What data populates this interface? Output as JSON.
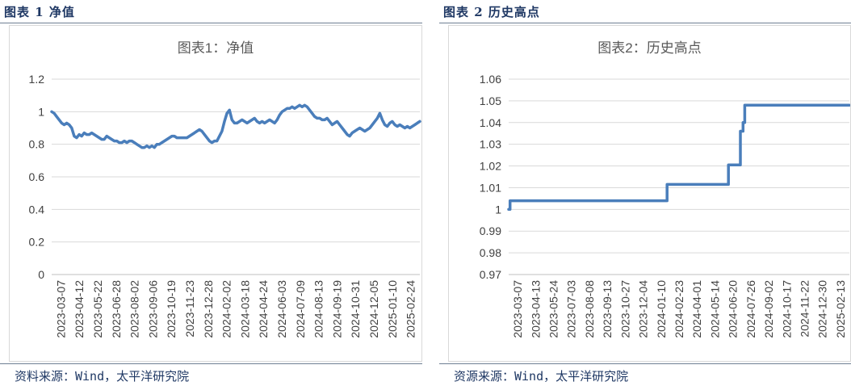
{
  "charts": [
    {
      "caption": "图表 1 净值",
      "source": "资料来源：Wind，太平洋研究院",
      "chart_data": {
        "type": "line",
        "title": "图表1：净值",
        "xlabel": "",
        "ylabel": "",
        "ylim": [
          0,
          1.2
        ],
        "yticks": [
          "0",
          "0.2",
          "0.4",
          "0.6",
          "0.8",
          "1",
          "1.2"
        ],
        "grid": true,
        "color": "#4a7ebb",
        "xtick_labels": [
          "2023-03-07",
          "2023-04-12",
          "2023-05-22",
          "2023-06-28",
          "2023-08-02",
          "2023-09-06",
          "2023-10-19",
          "2023-11-23",
          "2023-12-28",
          "2024-02-02",
          "2024-03-18",
          "2024-04-24",
          "2024-06-03",
          "2024-07-09",
          "2024-08-13",
          "2024-09-19",
          "2024-10-31",
          "2024-12-05",
          "2025-01-10",
          "2025-02-24"
        ],
        "series": [
          {
            "values": [
              1.0,
              0.99,
              0.97,
              0.95,
              0.93,
              0.92,
              0.93,
              0.92,
              0.9,
              0.85,
              0.84,
              0.86,
              0.85,
              0.87,
              0.86,
              0.86,
              0.87,
              0.86,
              0.85,
              0.84,
              0.83,
              0.83,
              0.85,
              0.84,
              0.83,
              0.82,
              0.82,
              0.81,
              0.81,
              0.82,
              0.81,
              0.82,
              0.82,
              0.81,
              0.8,
              0.79,
              0.78,
              0.78,
              0.79,
              0.78,
              0.79,
              0.78,
              0.8,
              0.8,
              0.81,
              0.82,
              0.83,
              0.84,
              0.85,
              0.85,
              0.84,
              0.84,
              0.84,
              0.84,
              0.84,
              0.85,
              0.86,
              0.87,
              0.88,
              0.89,
              0.88,
              0.86,
              0.84,
              0.82,
              0.81,
              0.82,
              0.82,
              0.85,
              0.88,
              0.94,
              0.99,
              1.01,
              0.95,
              0.93,
              0.93,
              0.94,
              0.95,
              0.94,
              0.93,
              0.94,
              0.95,
              0.96,
              0.94,
              0.93,
              0.94,
              0.93,
              0.94,
              0.95,
              0.94,
              0.93,
              0.95,
              0.98,
              1.0,
              1.01,
              1.02,
              1.02,
              1.03,
              1.02,
              1.03,
              1.04,
              1.03,
              1.04,
              1.03,
              1.01,
              0.99,
              0.97,
              0.96,
              0.96,
              0.95,
              0.95,
              0.96,
              0.94,
              0.92,
              0.93,
              0.94,
              0.92,
              0.9,
              0.88,
              0.86,
              0.85,
              0.87,
              0.88,
              0.89,
              0.9,
              0.89,
              0.88,
              0.89,
              0.9,
              0.92,
              0.94,
              0.96,
              0.99,
              0.95,
              0.92,
              0.91,
              0.93,
              0.94,
              0.92,
              0.91,
              0.92,
              0.91,
              0.9,
              0.91,
              0.9,
              0.91,
              0.92,
              0.93,
              0.94
            ]
          }
        ]
      }
    },
    {
      "caption": "图表 2 历史高点",
      "source": "资源来源：Wind，太平洋研究院",
      "chart_data": {
        "type": "line",
        "title": "图表2：历史高点",
        "xlabel": "",
        "ylabel": "",
        "ylim": [
          0.97,
          1.06
        ],
        "yticks": [
          "0.97",
          "0.98",
          "0.99",
          "1",
          "1.01",
          "1.02",
          "1.03",
          "1.04",
          "1.05",
          "1.06"
        ],
        "grid": true,
        "color": "#4a7ebb",
        "xtick_labels": [
          "2023-03-07",
          "2023-04-13",
          "2023-05-24",
          "2023-07-03",
          "2023-08-08",
          "2023-09-13",
          "2023-10-27",
          "2023-12-04",
          "2024-01-10",
          "2024-02-23",
          "2024-04-01",
          "2024-05-14",
          "2024-06-20",
          "2024-07-26",
          "2024-09-02",
          "2024-10-17",
          "2024-11-22",
          "2024-12-30",
          "2025-02-13"
        ],
        "series": [
          {
            "steps": [
              {
                "t": 0.0,
                "v": 1.0
              },
              {
                "t": 0.004,
                "v": 1.004
              },
              {
                "t": 0.465,
                "v": 1.0115
              },
              {
                "t": 0.645,
                "v": 1.0205
              },
              {
                "t": 0.68,
                "v": 1.036
              },
              {
                "t": 0.688,
                "v": 1.04
              },
              {
                "t": 0.693,
                "v": 1.048
              },
              {
                "t": 1.0,
                "v": 1.048
              }
            ]
          }
        ]
      }
    }
  ]
}
